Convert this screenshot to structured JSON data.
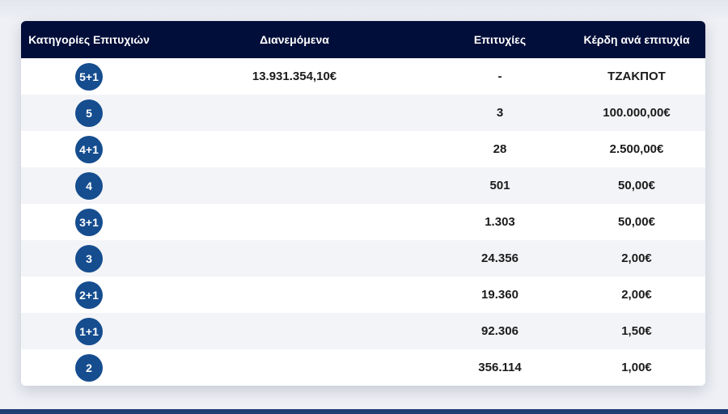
{
  "table": {
    "headers": {
      "category": "Κατηγορίες Επιτυχιών",
      "distributed": "Διανεμόμενα",
      "winners": "Επιτυχίες",
      "prize": "Κέρδη ανά επιτυχία"
    },
    "rows": [
      {
        "category": "5+1",
        "distributed": "13.931.354,10€",
        "winners": "-",
        "prize": "ΤΖΑΚΠΟΤ"
      },
      {
        "category": "5",
        "distributed": "",
        "winners": "3",
        "prize": "100.000,00€"
      },
      {
        "category": "4+1",
        "distributed": "",
        "winners": "28",
        "prize": "2.500,00€"
      },
      {
        "category": "4",
        "distributed": "",
        "winners": "501",
        "prize": "50,00€"
      },
      {
        "category": "3+1",
        "distributed": "",
        "winners": "1.303",
        "prize": "50,00€"
      },
      {
        "category": "3",
        "distributed": "",
        "winners": "24.356",
        "prize": "2,00€"
      },
      {
        "category": "2+1",
        "distributed": "",
        "winners": "19.360",
        "prize": "2,00€"
      },
      {
        "category": "1+1",
        "distributed": "",
        "winners": "92.306",
        "prize": "1,50€"
      },
      {
        "category": "2",
        "distributed": "",
        "winners": "356.114",
        "prize": "1,00€"
      }
    ]
  },
  "colors": {
    "header_bg": "#020e3a",
    "badge_bg": "#154d8f",
    "row_alt_bg": "#f3f4f7"
  }
}
